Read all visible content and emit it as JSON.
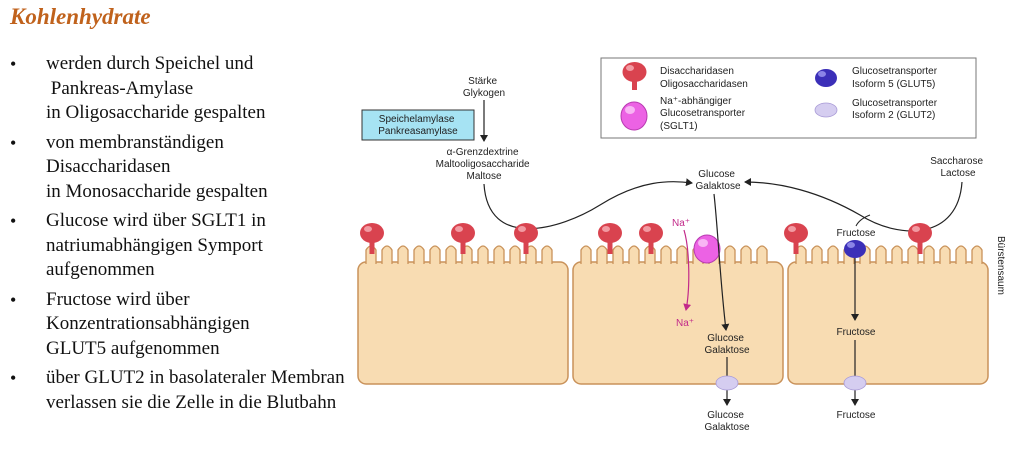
{
  "title": "Kohlenhydrate",
  "bullets": [
    {
      "lines": [
        "werden durch Speichel und",
        " Pankreas-Amylase",
        "in Oligosaccharide gespalten"
      ]
    },
    {
      "lines": [
        "von membranständigen",
        "Disaccharidasen",
        "in Monosaccharide gespalten"
      ]
    },
    {
      "lines": [
        "Glucose wird über SGLT1 in",
        "natriumabhängigen Symport",
        "aufgenommen"
      ]
    },
    {
      "lines": [
        "Fructose wird über",
        "Konzentrationsabhängigen",
        "GLUT5 aufgenommen"
      ]
    },
    {
      "lines": [
        "über GLUT2 in basolateraler Membran",
        "verlassen sie die Zelle in die Blutbahn"
      ]
    }
  ],
  "legend": {
    "disaccharidasen": [
      "Disaccharidasen",
      "Oligosaccharidasen"
    ],
    "sglt1": [
      "Na⁺-abhängiger",
      "Glucosetransporter",
      "(SGLT1)"
    ],
    "glut5": [
      "Glucosetransporter",
      "Isoform 5 (GLUT5)"
    ],
    "glut2": [
      "Glucosetransporter",
      "Isoform 2 (GLUT2)"
    ]
  },
  "diagram": {
    "staerke": [
      "Stärke",
      "Glykogen"
    ],
    "amylase_box": [
      "Speichelamylase",
      "Pankreasamylase"
    ],
    "grenzdextrine": [
      "α-Grenzdextrine",
      "Maltooligosaccharide",
      "Maltose"
    ],
    "glucose_top": [
      "Glucose",
      "Galaktose"
    ],
    "saccharose": [
      "Saccharose",
      "Lactose"
    ],
    "fructose_top": "Fructose",
    "na_top": "Na⁺",
    "na_bottom": "Na⁺",
    "glucose_mid": [
      "Glucose",
      "Galaktose"
    ],
    "fructose_mid": "Fructose",
    "glucose_bottom": [
      "Glucose",
      "Galaktose"
    ],
    "fructose_bottom": "Fructose",
    "buerstensaum": "Bürstensaum"
  },
  "colors": {
    "title": "#c0621c",
    "cell_fill": "#f8dcb2",
    "cell_border": "#c9925a",
    "enzyme": "#d9434f",
    "sglt1": "#ec62e4",
    "glut5": "#3b2fb8",
    "glut2": "#d5cdf0",
    "amylase_box": "#a6e3f3",
    "na": "#c22a8a"
  }
}
